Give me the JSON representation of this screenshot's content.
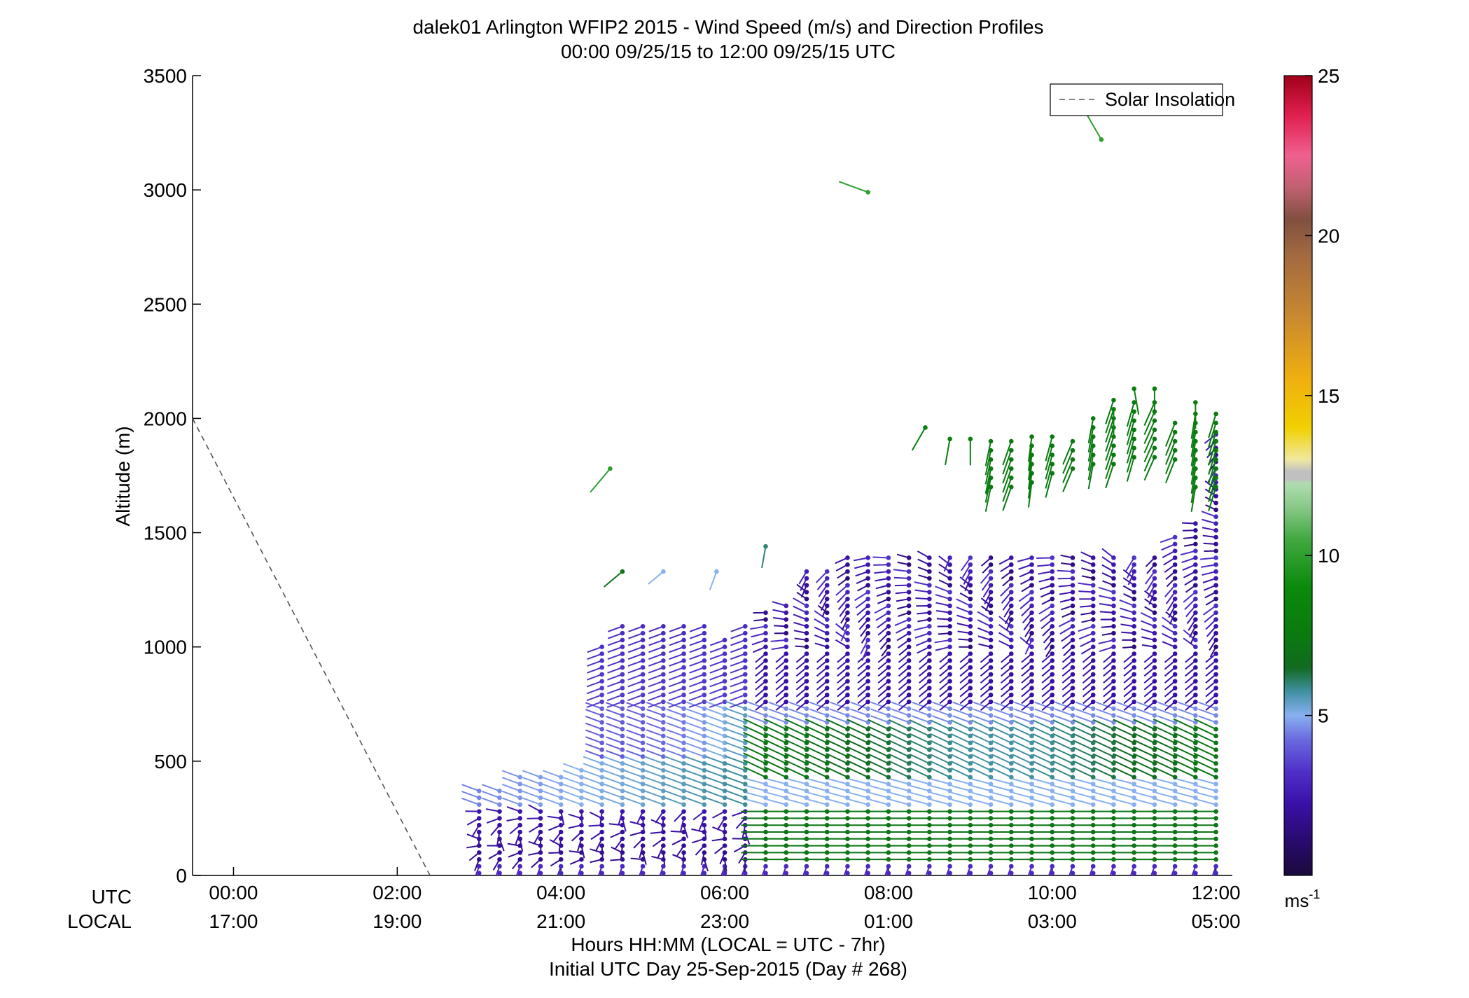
{
  "chart_data": {
    "type": "scatter",
    "title": "dalek01 Arlington WFIP2 2015 - Wind Speed (m/s) and Direction Profiles",
    "subtitle": "00:00 09/25/15 to 12:00 09/25/15  UTC",
    "ylabel": "Altitude (m)",
    "xlabel": "Hours HH:MM  (LOCAL = UTC - 7hr)",
    "xlabel2": "Initial UTC Day 25-Sep-2015 (Day # 268)",
    "xlim": [
      -0.5,
      12.2
    ],
    "ylim": [
      0,
      3500
    ],
    "row_labels": {
      "utc": "UTC",
      "local": "LOCAL"
    },
    "x_ticks": [
      {
        "value": 0,
        "utc": "00:00",
        "local": "17:00"
      },
      {
        "value": 2,
        "utc": "02:00",
        "local": "19:00"
      },
      {
        "value": 4,
        "utc": "04:00",
        "local": "21:00"
      },
      {
        "value": 6,
        "utc": "06:00",
        "local": "23:00"
      },
      {
        "value": 8,
        "utc": "08:00",
        "local": "01:00"
      },
      {
        "value": 10,
        "utc": "10:00",
        "local": "03:00"
      },
      {
        "value": 12,
        "utc": "12:00",
        "local": "05:00"
      }
    ],
    "y_ticks": [
      "0",
      "500",
      "1000",
      "1500",
      "2000",
      "2500",
      "3000",
      "3500"
    ],
    "legend": {
      "label": "Solar Insolation",
      "position": "top-right"
    },
    "solar_insolation": {
      "x": [
        -0.5,
        2.4
      ],
      "y": [
        2000,
        0
      ]
    },
    "colorbar": {
      "range": [
        0,
        25
      ],
      "ticks": [
        "5",
        "10",
        "15",
        "20",
        "25"
      ],
      "unit": "ms",
      "unit_sup": "-1",
      "stops": [
        [
          0.0,
          "#1a0a3a"
        ],
        [
          0.04,
          "#280a6a"
        ],
        [
          0.09,
          "#3a10a8"
        ],
        [
          0.13,
          "#5030c8"
        ],
        [
          0.17,
          "#6a6ae0"
        ],
        [
          0.2,
          "#88b0f0"
        ],
        [
          0.23,
          "#4090a0"
        ],
        [
          0.26,
          "#106a20"
        ],
        [
          0.3,
          "#0a7a10"
        ],
        [
          0.36,
          "#0a8a0a"
        ],
        [
          0.42,
          "#40a840"
        ],
        [
          0.46,
          "#88c888"
        ],
        [
          0.49,
          "#b0dcb0"
        ],
        [
          0.495,
          "#c0c0c0"
        ],
        [
          0.505,
          "#c0c0c0"
        ],
        [
          0.52,
          "#f0e8a0"
        ],
        [
          0.56,
          "#f0d000"
        ],
        [
          0.62,
          "#f0b010"
        ],
        [
          0.7,
          "#c88830"
        ],
        [
          0.78,
          "#a06840"
        ],
        [
          0.82,
          "#805040"
        ],
        [
          0.86,
          "#c06070"
        ],
        [
          0.9,
          "#f06090"
        ],
        [
          0.95,
          "#e02050"
        ],
        [
          1.0,
          "#a0001a"
        ]
      ]
    },
    "barbs": {
      "x_start": 3.0,
      "x_step": 0.25,
      "count": 37,
      "height_step": 30,
      "profiles": [
        {
          "x": 3.0,
          "top": 380
        },
        {
          "x": 3.25,
          "top": 380
        },
        {
          "x": 3.5,
          "top": 440
        },
        {
          "x": 3.75,
          "top": 440
        },
        {
          "x": 4.0,
          "top": 440
        },
        {
          "x": 4.25,
          "top": 480
        },
        {
          "x": 4.5,
          "top": 1000
        },
        {
          "x": 4.75,
          "top": 1100
        },
        {
          "x": 5.0,
          "top": 1100
        },
        {
          "x": 5.25,
          "top": 1100
        },
        {
          "x": 5.5,
          "top": 1100
        },
        {
          "x": 5.75,
          "top": 1100
        },
        {
          "x": 6.0,
          "top": 1050
        },
        {
          "x": 6.25,
          "top": 1100
        },
        {
          "x": 6.5,
          "top": 1150
        },
        {
          "x": 6.75,
          "top": 1200
        },
        {
          "x": 7.0,
          "top": 1350
        },
        {
          "x": 7.25,
          "top": 1350
        },
        {
          "x": 7.5,
          "top": 1400
        },
        {
          "x": 7.75,
          "top": 1400
        },
        {
          "x": 8.0,
          "top": 1400
        },
        {
          "x": 8.25,
          "top": 1400
        },
        {
          "x": 8.5,
          "top": 1400
        },
        {
          "x": 8.75,
          "top": 1400
        },
        {
          "x": 9.0,
          "top": 1400
        },
        {
          "x": 9.25,
          "top": 1400
        },
        {
          "x": 9.5,
          "top": 1400
        },
        {
          "x": 9.75,
          "top": 1400
        },
        {
          "x": 10.0,
          "top": 1400
        },
        {
          "x": 10.25,
          "top": 1400
        },
        {
          "x": 10.5,
          "top": 1400
        },
        {
          "x": 10.75,
          "top": 1400
        },
        {
          "x": 11.0,
          "top": 1400
        },
        {
          "x": 11.25,
          "top": 1400
        },
        {
          "x": 11.5,
          "top": 1500
        },
        {
          "x": 11.75,
          "top": 1550
        },
        {
          "x": 12.0,
          "top": 1950
        }
      ],
      "isolated": [
        {
          "x": 4.6,
          "y": 1780,
          "speed": 10,
          "dir": 220
        },
        {
          "x": 4.75,
          "y": 1330,
          "speed": 7,
          "dir": 230
        },
        {
          "x": 5.25,
          "y": 1330,
          "speed": 5,
          "dir": 230
        },
        {
          "x": 5.9,
          "y": 1330,
          "speed": 5,
          "dir": 200
        },
        {
          "x": 6.5,
          "y": 1440,
          "speed": 6,
          "dir": 190
        },
        {
          "x": 7.75,
          "y": 2990,
          "speed": 10,
          "dir": 290
        },
        {
          "x": 10.6,
          "y": 3220,
          "speed": 10,
          "dir": 330
        },
        {
          "x": 8.45,
          "y": 1960,
          "speed": 8,
          "dir": 210
        },
        {
          "x": 8.75,
          "y": 1910,
          "speed": 8,
          "dir": 190
        },
        {
          "x": 9.0,
          "y": 1910,
          "speed": 8,
          "dir": 180
        },
        {
          "x": 9.25,
          "y": 1780,
          "speed": 8,
          "dir": 190
        },
        {
          "x": 10.75,
          "y": 2040,
          "speed": 8,
          "dir": 180
        },
        {
          "x": 11.0,
          "y": 2130,
          "speed": 8,
          "dir": 170
        },
        {
          "x": 11.25,
          "y": 2130,
          "speed": 8,
          "dir": 180
        },
        {
          "x": 11.75,
          "y": 2070,
          "speed": 8,
          "dir": 180
        }
      ],
      "upper_green": [
        {
          "x": 9.25,
          "bottom": 1700,
          "top": 1900
        },
        {
          "x": 9.5,
          "bottom": 1700,
          "top": 1920
        },
        {
          "x": 9.75,
          "bottom": 1720,
          "top": 1920
        },
        {
          "x": 10.0,
          "bottom": 1760,
          "top": 1920
        },
        {
          "x": 10.25,
          "bottom": 1780,
          "top": 1920
        },
        {
          "x": 10.5,
          "bottom": 1800,
          "top": 2000
        },
        {
          "x": 10.75,
          "bottom": 1800,
          "top": 2100
        },
        {
          "x": 11.0,
          "bottom": 1830,
          "top": 2100
        },
        {
          "x": 11.25,
          "bottom": 1830,
          "top": 2080
        },
        {
          "x": 11.5,
          "bottom": 1820,
          "top": 2000
        },
        {
          "x": 11.75,
          "bottom": 1700,
          "top": 2050
        },
        {
          "x": 12.0,
          "bottom": 1700,
          "top": 2050
        }
      ]
    }
  }
}
